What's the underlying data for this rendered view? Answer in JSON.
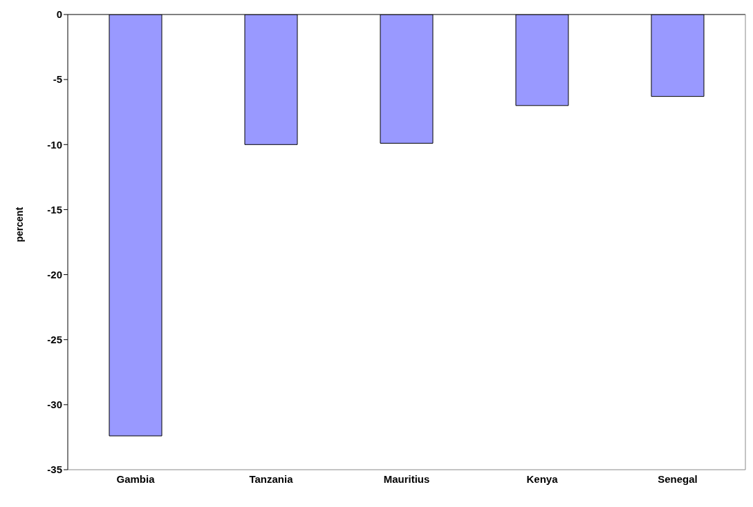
{
  "chart_data": {
    "type": "bar",
    "ylabel": "percent",
    "categories": [
      "Gambia",
      "Tanzania",
      "Mauritius",
      "Kenya",
      "Senegal"
    ],
    "values": [
      -32.4,
      -10.0,
      -9.9,
      -7.0,
      -6.3
    ],
    "color": "#9999ff",
    "ylim": [
      -35,
      0
    ],
    "yticks": [
      -35,
      -30,
      -25,
      -20,
      -15,
      -10,
      -5,
      0
    ],
    "grid": false,
    "legend": false
  }
}
